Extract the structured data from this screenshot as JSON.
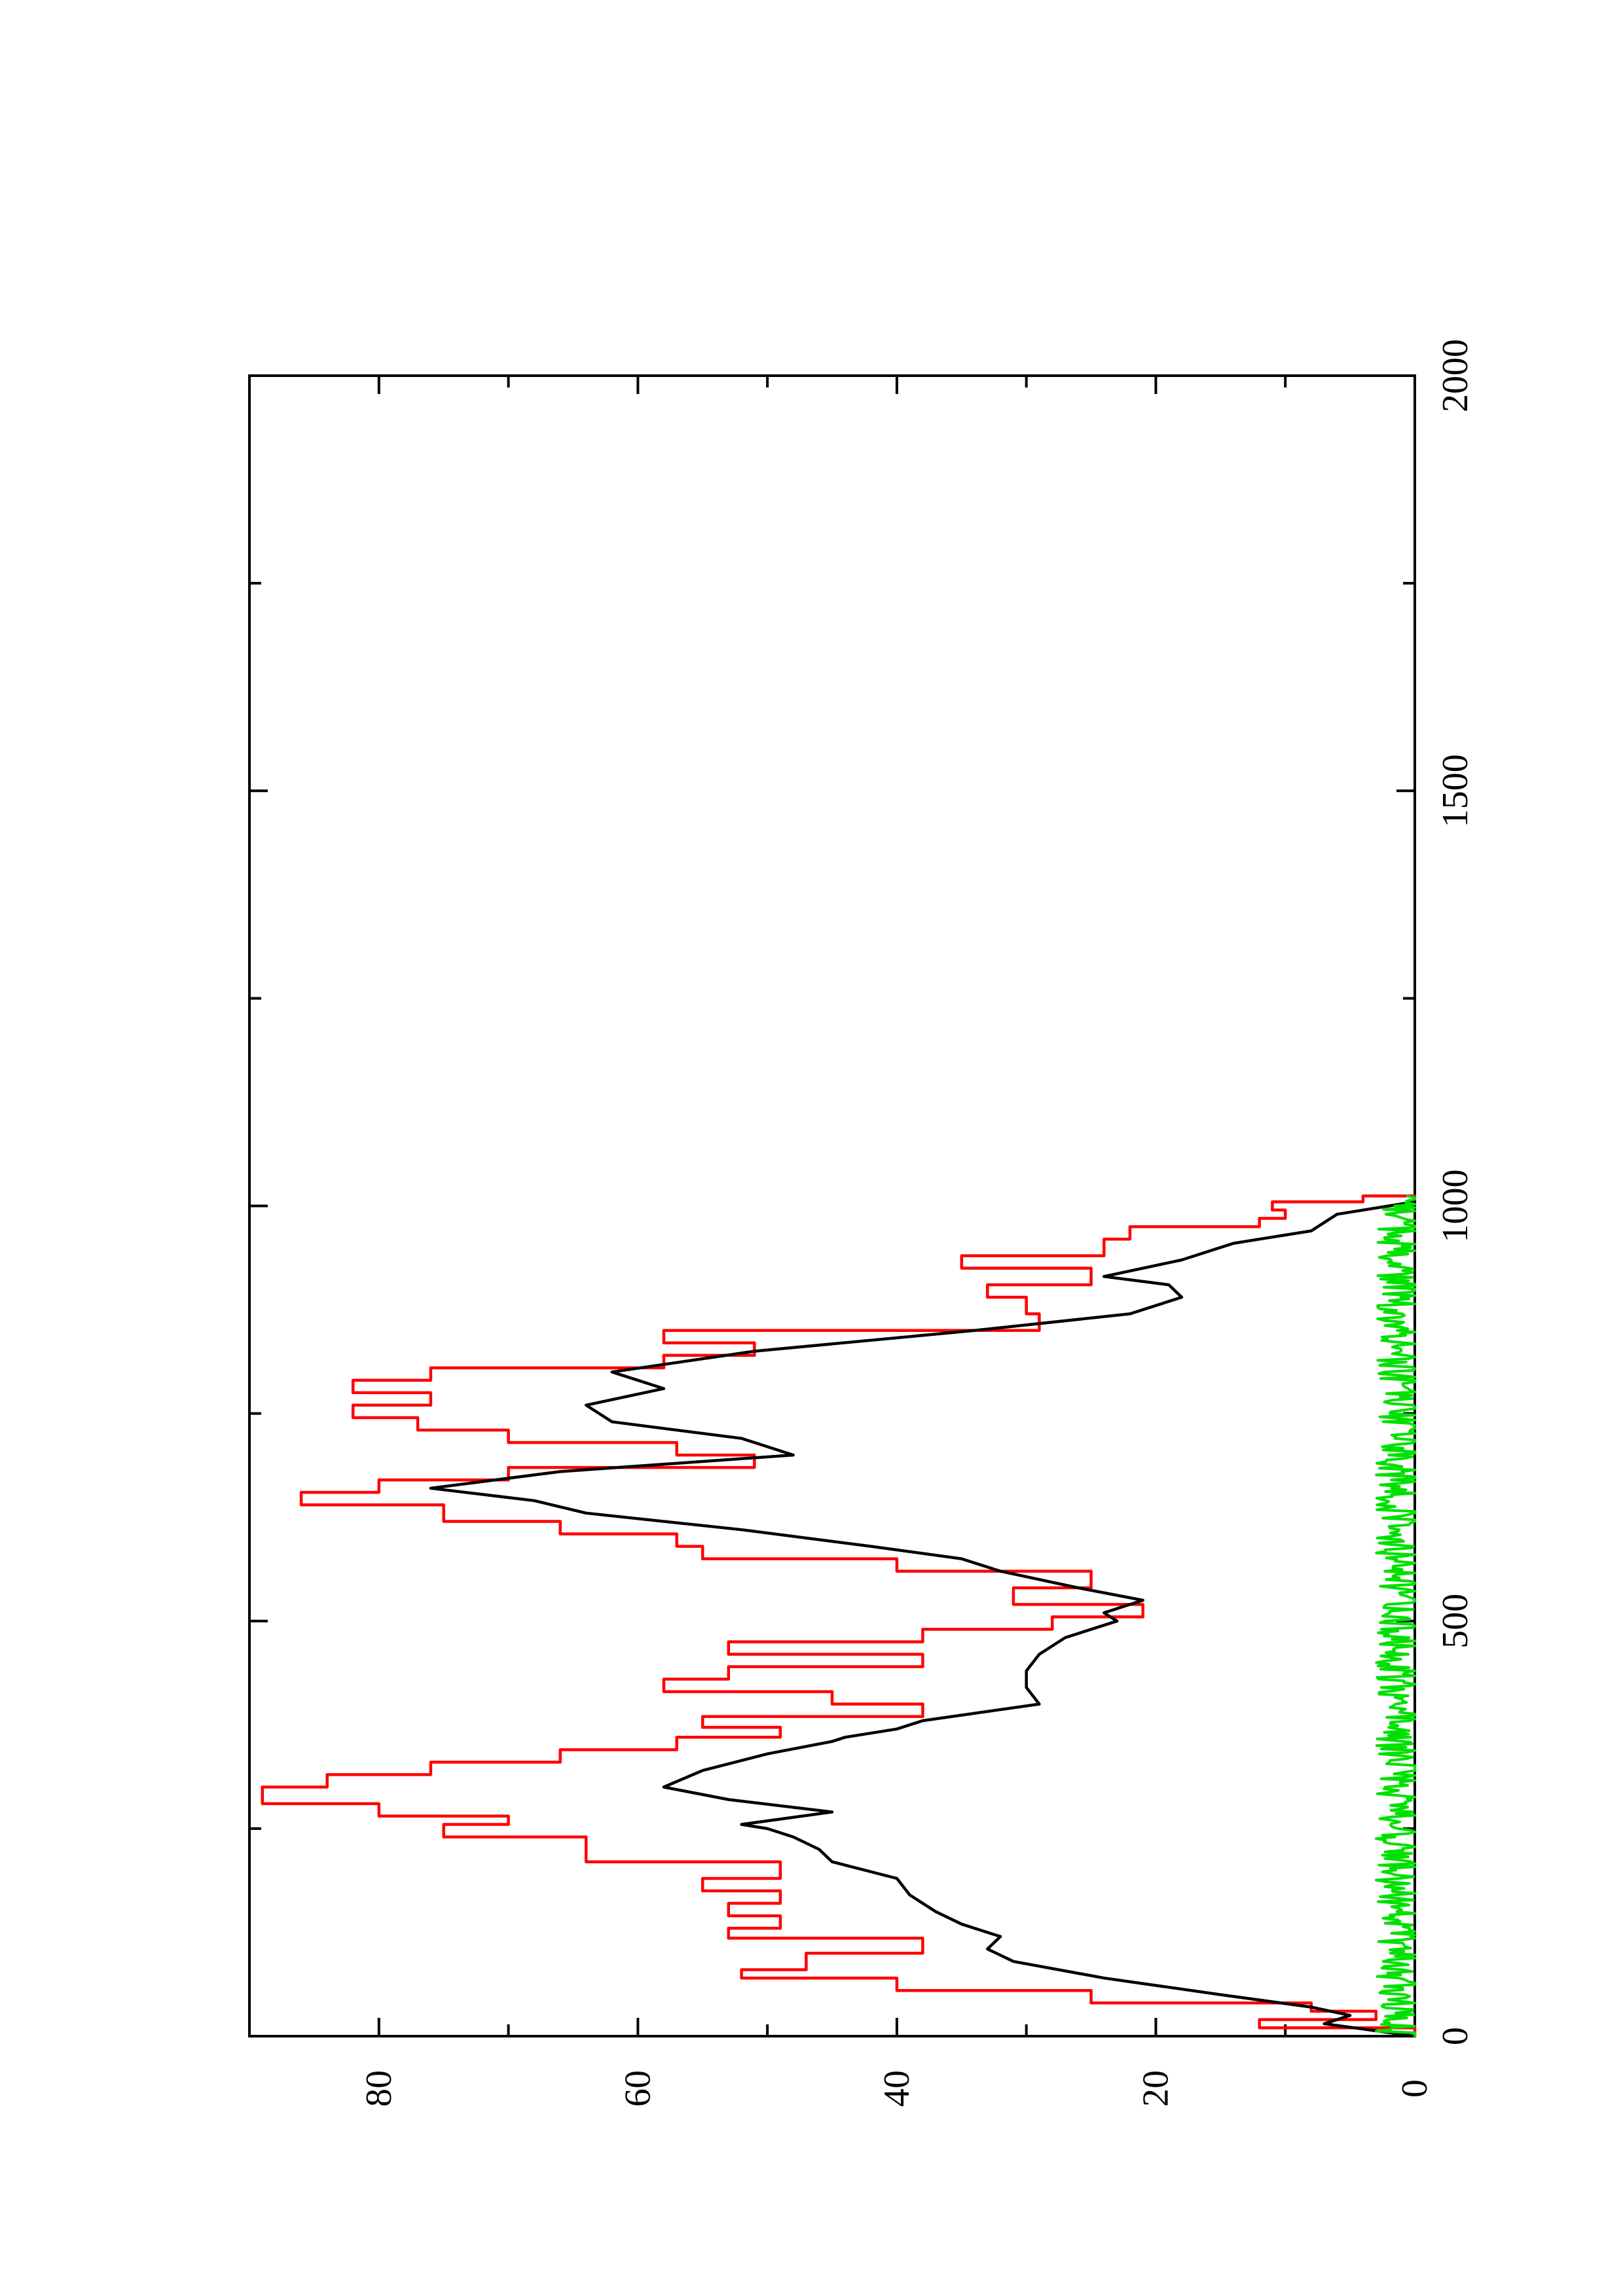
{
  "chart_data": {
    "type": "line",
    "orientation": "rotated-90-ccw",
    "title": "",
    "xlabel": "",
    "ylabel": "",
    "xlim": [
      0,
      2000
    ],
    "ylim": [
      0,
      90
    ],
    "x_ticks": [
      "0",
      "500",
      "1000",
      "1500",
      "2000"
    ],
    "x_tick_values": [
      0,
      500,
      1000,
      1500,
      2000
    ],
    "x_minor_ticks": [
      250,
      750,
      1250,
      1750
    ],
    "y_ticks": [
      "0",
      "20",
      "40",
      "60",
      "80"
    ],
    "y_tick_values": [
      0,
      20,
      40,
      60,
      80
    ],
    "y_minor_ticks": [
      10,
      30,
      50,
      70
    ],
    "grid": false,
    "legend": "none",
    "series": [
      {
        "color": "#ff0000",
        "style": "step",
        "x": [
          0,
          10,
          20,
          30,
          40,
          55,
          70,
          80,
          100,
          118,
          130,
          145,
          160,
          175,
          190,
          210,
          225,
          240,
          255,
          265,
          280,
          300,
          315,
          330,
          345,
          360,
          372,
          385,
          400,
          415,
          430,
          445,
          460,
          475,
          490,
          505,
          520,
          540,
          560,
          575,
          590,
          605,
          620,
          640,
          655,
          670,
          685,
          700,
          715,
          730,
          745,
          760,
          775,
          790,
          805,
          820,
          835,
          850,
          870,
          890,
          905,
          925,
          940,
          960,
          975,
          985,
          995,
          1005,
          1012
        ],
        "y": [
          0,
          12,
          3,
          8,
          25,
          40,
          52,
          47,
          38,
          53,
          49,
          53,
          49,
          55,
          49,
          64,
          64,
          75,
          70,
          80,
          89,
          84,
          76,
          66,
          57,
          49,
          55,
          38,
          45,
          58,
          53,
          38,
          53,
          38,
          28,
          21,
          31,
          25,
          40,
          55,
          57,
          66,
          75,
          86,
          80,
          70,
          51,
          57,
          70,
          77,
          82,
          76,
          82,
          76,
          58,
          51,
          58,
          29,
          30,
          33,
          25,
          35,
          24,
          22,
          12,
          10,
          11,
          4,
          0
        ]
      },
      {
        "color": "#000000",
        "style": "line",
        "x": [
          0,
          15,
          25,
          35,
          50,
          70,
          90,
          105,
          120,
          135,
          150,
          170,
          190,
          210,
          225,
          240,
          250,
          255,
          270,
          285,
          300,
          320,
          340,
          355,
          360,
          370,
          380,
          400,
          420,
          440,
          460,
          480,
          500,
          510,
          525,
          540,
          560,
          575,
          590,
          610,
          630,
          645,
          660,
          680,
          700,
          720,
          740,
          760,
          780,
          800,
          825,
          850,
          870,
          890,
          905,
          915,
          935,
          955,
          970,
          990,
          1000,
          1005
        ],
        "y": [
          0,
          7,
          5,
          8,
          15,
          24,
          31,
          33,
          32,
          35,
          37,
          39,
          40,
          45,
          46,
          48,
          50,
          52,
          45,
          53,
          58,
          55,
          50,
          45,
          44,
          40,
          38,
          29,
          30,
          30,
          29,
          27,
          23,
          24,
          21,
          26,
          32,
          35,
          42,
          52,
          64,
          68,
          76,
          66,
          48,
          52,
          62,
          64,
          58,
          62,
          51,
          34,
          22,
          18,
          19,
          24,
          18,
          14,
          8,
          6,
          2,
          0
        ]
      },
      {
        "color": "#00e000",
        "style": "noisy-line",
        "x_range": [
          0,
          1012
        ],
        "mean": 1.2,
        "max": 3.0
      }
    ]
  }
}
